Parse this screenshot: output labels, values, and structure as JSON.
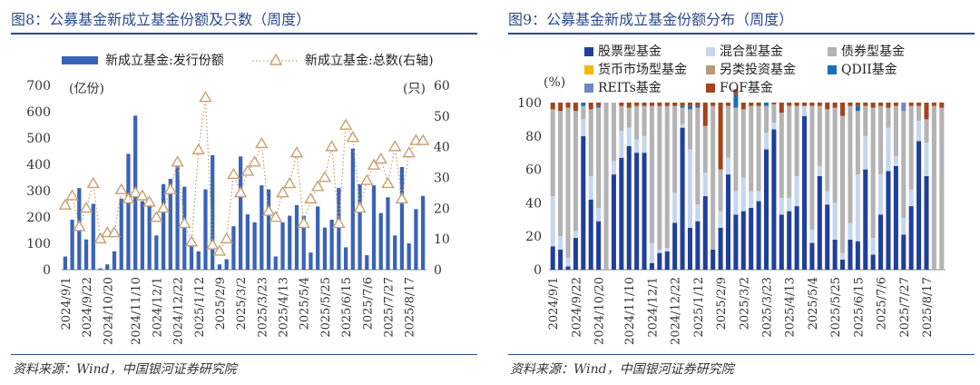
{
  "left": {
    "title": "图8：公募基金新成立基金份额及只数（周度）",
    "source": "资料来源：Wind，中国银河证券研究院",
    "left_unit": "(亿份)",
    "right_unit": "(只)",
    "chart_data": {
      "type": "bar+line",
      "categories": [
        "2024/9/1",
        "",
        "",
        "2024/9/22",
        "",
        "",
        "2024/10/20",
        "",
        "",
        "",
        "2024/11/10",
        "",
        "",
        "2024/12/1",
        "",
        "",
        "2024/12/22",
        "",
        "",
        "2025/1/12",
        "",
        "",
        "2025/2/9",
        "",
        "",
        "2025/3/2",
        "",
        "",
        "2025/3/23",
        "",
        "",
        "2025/4/13",
        "",
        "",
        "2025/5/4",
        "",
        "",
        "2025/5/25",
        "",
        "",
        "2025/6/15",
        "",
        "",
        "2025/7/6",
        "",
        "",
        "2025/7/27",
        "",
        "",
        "2025/8/17",
        "",
        ""
      ],
      "series": [
        {
          "name": "新成立基金:发行份额",
          "type": "bar",
          "axis": "left",
          "color": "#3a63b8",
          "values": [
            50,
            190,
            310,
            115,
            250,
            5,
            20,
            70,
            270,
            440,
            585,
            260,
            270,
            130,
            325,
            345,
            405,
            315,
            120,
            70,
            305,
            435,
            20,
            40,
            165,
            430,
            210,
            180,
            320,
            305,
            50,
            180,
            205,
            245,
            205,
            65,
            240,
            160,
            190,
            310,
            85,
            460,
            325,
            55,
            320,
            215,
            275,
            130,
            390,
            100,
            230,
            280
          ]
        },
        {
          "name": "新成立基金:总数(右轴)",
          "type": "line",
          "axis": "right",
          "color": "#c8a070",
          "values": [
            21,
            24,
            14,
            20,
            28,
            10,
            12,
            12,
            26,
            23,
            25,
            24,
            22,
            17,
            20,
            26,
            35,
            15,
            9,
            39,
            56,
            8,
            6,
            10,
            31,
            25,
            32,
            35,
            41,
            19,
            17,
            25,
            28,
            38,
            15,
            23,
            27,
            30,
            40,
            15,
            47,
            43,
            20,
            29,
            34,
            36,
            28,
            40,
            23,
            38,
            42,
            42
          ]
        }
      ],
      "ylim_left": [
        0,
        700
      ],
      "ylim_right": [
        0,
        60
      ],
      "yticks_left": [
        "0",
        "100",
        "200",
        "300",
        "400",
        "500",
        "600",
        "700"
      ],
      "yticks_right": [
        "0",
        "10",
        "20",
        "30",
        "40",
        "50",
        "60"
      ],
      "legend": "top"
    }
  },
  "right": {
    "title": "图9：公募基金新成立基金份额分布（周度）",
    "source": "资料来源：Wind，中国银河证券研究院",
    "y_unit": "(%)",
    "chart_data": {
      "type": "stacked-bar-100",
      "categories": [
        "2024/9/1",
        "",
        "",
        "2024/9/22",
        "",
        "",
        "2024/10/20",
        "",
        "",
        "",
        "2024/11/10",
        "",
        "",
        "2024/12/1",
        "",
        "",
        "2024/12/22",
        "",
        "",
        "2025/1/12",
        "",
        "",
        "2025/2/9",
        "",
        "",
        "2025/3/2",
        "",
        "",
        "2025/3/23",
        "",
        "",
        "2025/4/13",
        "",
        "",
        "2025/5/4",
        "",
        "",
        "2025/5/25",
        "",
        "",
        "2025/6/15",
        "",
        "",
        "2025/7/6",
        "",
        "",
        "2025/7/27",
        "",
        "",
        "2025/8/17",
        "",
        ""
      ],
      "ylim": [
        0,
        100
      ],
      "yticks": [
        "0",
        "20",
        "40",
        "60",
        "80",
        "100"
      ],
      "legend": "top",
      "series": [
        {
          "name": "股票型基金",
          "color": "#1f3f9c",
          "values": [
            14,
            12,
            2,
            19,
            80,
            42,
            29,
            0,
            57,
            67,
            74,
            70,
            70,
            4,
            10,
            11,
            28,
            85,
            25,
            29,
            44,
            12,
            25,
            57,
            33,
            35,
            37,
            41,
            72,
            84,
            33,
            35,
            38,
            92,
            16,
            56,
            39,
            18,
            6,
            18,
            17,
            60,
            9,
            33,
            59,
            62,
            21,
            38,
            77,
            56,
            0,
            0
          ]
        },
        {
          "name": "混合型基金",
          "color": "#c5d6ee",
          "values": [
            30,
            8,
            5,
            4,
            10,
            14,
            8,
            0,
            8,
            16,
            11,
            8,
            10,
            12,
            2,
            2,
            18,
            2,
            47,
            10,
            14,
            0,
            10,
            10,
            14,
            20,
            10,
            6,
            10,
            4,
            10,
            8,
            18,
            6,
            8,
            6,
            8,
            22,
            4,
            10,
            40,
            20,
            10,
            24,
            26,
            6,
            10,
            10,
            12,
            20,
            0,
            0
          ]
        },
        {
          "name": "债券型基金",
          "color": "#b3b3b3",
          "values": [
            52,
            75,
            90,
            72,
            8,
            40,
            60,
            100,
            35,
            15,
            12,
            20,
            18,
            82,
            86,
            85,
            52,
            10,
            24,
            58,
            28,
            86,
            25,
            31,
            50,
            41,
            51,
            51,
            16,
            11,
            51,
            55,
            42,
            0,
            74,
            36,
            49,
            57,
            82,
            70,
            38,
            18,
            78,
            41,
            12,
            30,
            64,
            50,
            9,
            14,
            98,
            97
          ]
        },
        {
          "name": "货币市场型基金",
          "color": "#f5b800",
          "values": [
            0,
            0,
            0,
            0,
            0,
            0,
            0,
            0,
            0,
            0,
            0,
            0,
            0,
            0,
            0,
            0,
            0,
            0,
            0,
            0,
            0,
            0,
            0,
            0,
            0,
            0,
            0,
            0,
            0,
            0,
            0,
            0,
            0,
            0,
            0,
            0,
            0,
            0,
            0,
            0,
            0,
            0,
            0,
            0,
            0,
            0,
            0,
            0,
            0,
            0,
            0,
            0
          ]
        },
        {
          "name": "另类投资基金",
          "color": "#b9987a",
          "values": [
            0,
            0,
            0,
            0,
            0,
            0,
            0,
            0,
            0,
            0,
            0,
            0,
            0,
            0,
            0,
            0,
            0,
            0,
            0,
            0,
            0,
            0,
            0,
            0,
            0,
            0,
            0,
            0,
            0,
            0,
            0,
            0,
            0,
            0,
            0,
            0,
            0,
            0,
            0,
            0,
            0,
            0,
            0,
            0,
            0,
            0,
            0,
            0,
            0,
            0,
            0,
            0
          ]
        },
        {
          "name": "QDII基金",
          "color": "#1a6fb8",
          "values": [
            0,
            0,
            0,
            0,
            2,
            0,
            1,
            0,
            0,
            0,
            0,
            0,
            0,
            0,
            0,
            0,
            0,
            1,
            2,
            1,
            0,
            0,
            0,
            0,
            8,
            0,
            0,
            0,
            2,
            0,
            0,
            0,
            0,
            0,
            0,
            0,
            0,
            0,
            0,
            0,
            3,
            0,
            0,
            0,
            0,
            0,
            0,
            0,
            0,
            0,
            0,
            0
          ]
        },
        {
          "name": "REITs基金",
          "color": "#6f86bf",
          "values": [
            0,
            0,
            0,
            0,
            0,
            0,
            0,
            0,
            0,
            0,
            0,
            0,
            0,
            0,
            0,
            0,
            0,
            0,
            0,
            0,
            0,
            0,
            0,
            0,
            0,
            0,
            0,
            0,
            0,
            0,
            0,
            0,
            0,
            0,
            0,
            0,
            0,
            0,
            0,
            0,
            0,
            0,
            0,
            0,
            0,
            0,
            5,
            0,
            0,
            0,
            0,
            0
          ]
        },
        {
          "name": "FOF基金",
          "color": "#a5431c",
          "values": [
            4,
            5,
            3,
            5,
            0,
            4,
            2,
            0,
            0,
            2,
            3,
            2,
            2,
            2,
            2,
            2,
            2,
            2,
            2,
            2,
            14,
            2,
            40,
            2,
            3,
            4,
            2,
            2,
            0,
            1,
            6,
            2,
            2,
            2,
            2,
            2,
            4,
            3,
            8,
            2,
            2,
            2,
            3,
            2,
            3,
            2,
            0,
            2,
            2,
            10,
            2,
            3
          ]
        }
      ]
    }
  }
}
